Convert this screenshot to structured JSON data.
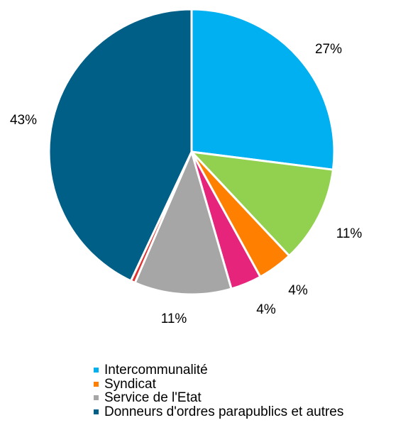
{
  "chart_data": {
    "type": "pie",
    "start_angle_deg": 0,
    "direction": "clockwise",
    "slices": [
      {
        "name": "Intercommunalité",
        "value": 27,
        "color": "#00B0F0",
        "label": "27%",
        "in_legend": true
      },
      {
        "name": "",
        "value": 11,
        "color": "#92D050",
        "label": "11%",
        "in_legend": false
      },
      {
        "name": "Syndicat",
        "value": 4,
        "color": "#FF8000",
        "label": "4%",
        "in_legend": true
      },
      {
        "name": "",
        "value": 3.5,
        "color": "#E6247B",
        "label": "4%",
        "in_legend": false
      },
      {
        "name": "Service de l'Etat",
        "value": 11,
        "color": "#A6A6A6",
        "label": "11%",
        "in_legend": true
      },
      {
        "name": "",
        "value": 0.5,
        "color": "#E03030",
        "label": "",
        "in_legend": false
      },
      {
        "name": "Donneurs d'ordres parapublics et autres",
        "value": 43,
        "color": "#005F86",
        "label": "43%",
        "in_legend": true
      }
    ],
    "legend_position": "bottom"
  }
}
